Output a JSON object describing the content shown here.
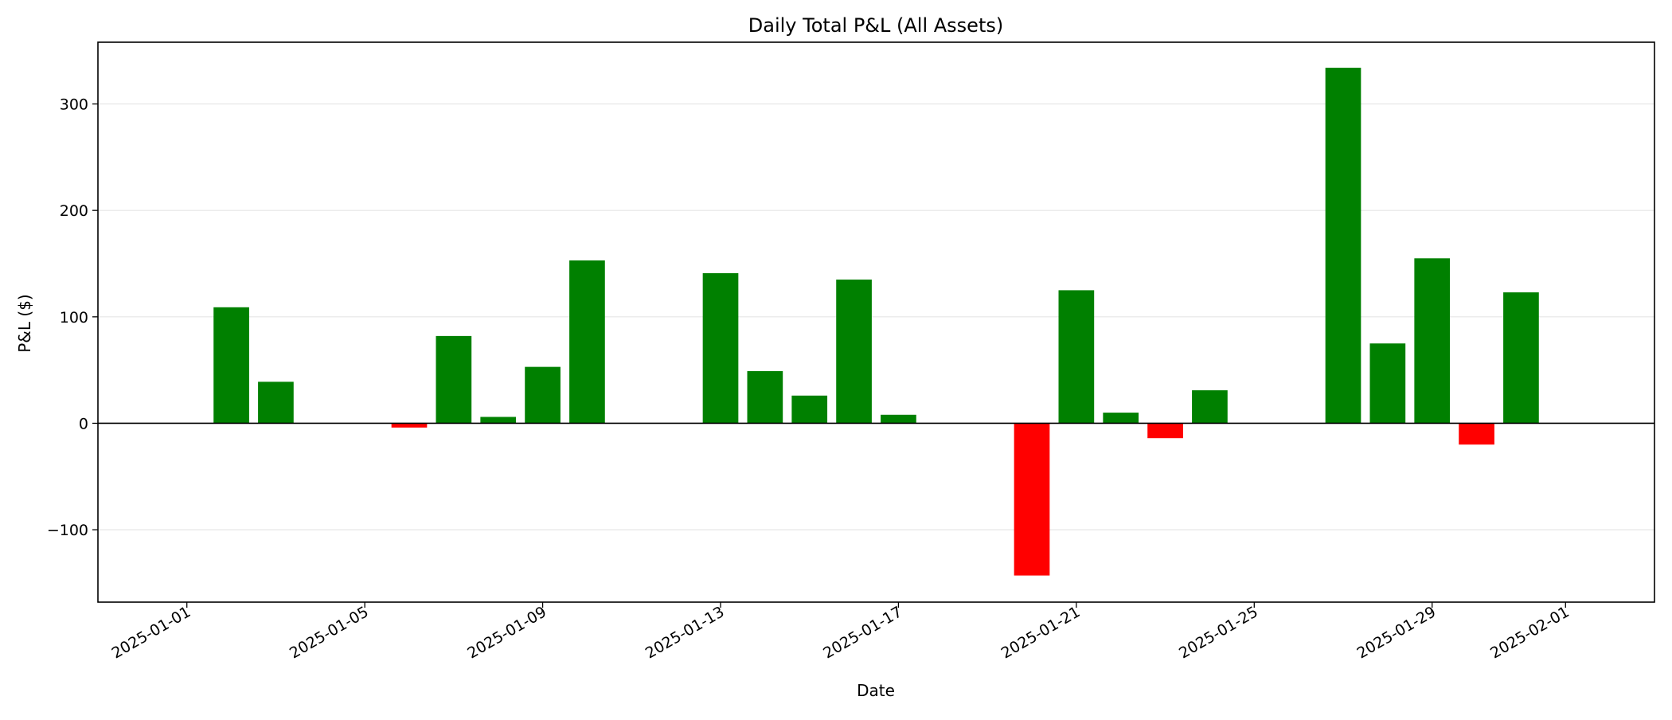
{
  "chart_data": {
    "type": "bar",
    "title": "Daily Total P&L (All Assets)",
    "xlabel": "Date",
    "ylabel": "P&L ($)",
    "x_axis_type": "date",
    "xlim": [
      "2024-12-30",
      "2025-02-03"
    ],
    "ylim": [
      -168,
      358
    ],
    "x_ticks": [
      "2025-01-01",
      "2025-01-05",
      "2025-01-09",
      "2025-01-13",
      "2025-01-17",
      "2025-01-21",
      "2025-01-25",
      "2025-01-29",
      "2025-02-01"
    ],
    "y_ticks": [
      -100,
      0,
      100,
      200,
      300
    ],
    "y_tick_labels": [
      "−100",
      "0",
      "100",
      "200",
      "300"
    ],
    "grid": "horizontal",
    "zero_line": true,
    "colors": {
      "positive": "#008000",
      "negative": "#ff0000"
    },
    "bars": [
      {
        "date": "2025-01-02",
        "value": 109
      },
      {
        "date": "2025-01-03",
        "value": 39
      },
      {
        "date": "2025-01-06",
        "value": -4
      },
      {
        "date": "2025-01-07",
        "value": 82
      },
      {
        "date": "2025-01-08",
        "value": 6
      },
      {
        "date": "2025-01-09",
        "value": 53
      },
      {
        "date": "2025-01-10",
        "value": 153
      },
      {
        "date": "2025-01-13",
        "value": 141
      },
      {
        "date": "2025-01-14",
        "value": 49
      },
      {
        "date": "2025-01-15",
        "value": 26
      },
      {
        "date": "2025-01-16",
        "value": 135
      },
      {
        "date": "2025-01-17",
        "value": 8
      },
      {
        "date": "2025-01-20",
        "value": -143
      },
      {
        "date": "2025-01-21",
        "value": 125
      },
      {
        "date": "2025-01-22",
        "value": 10
      },
      {
        "date": "2025-01-23",
        "value": -14
      },
      {
        "date": "2025-01-24",
        "value": 31
      },
      {
        "date": "2025-01-27",
        "value": 334
      },
      {
        "date": "2025-01-28",
        "value": 75
      },
      {
        "date": "2025-01-29",
        "value": 155
      },
      {
        "date": "2025-01-30",
        "value": -20
      },
      {
        "date": "2025-01-31",
        "value": 123
      }
    ]
  }
}
